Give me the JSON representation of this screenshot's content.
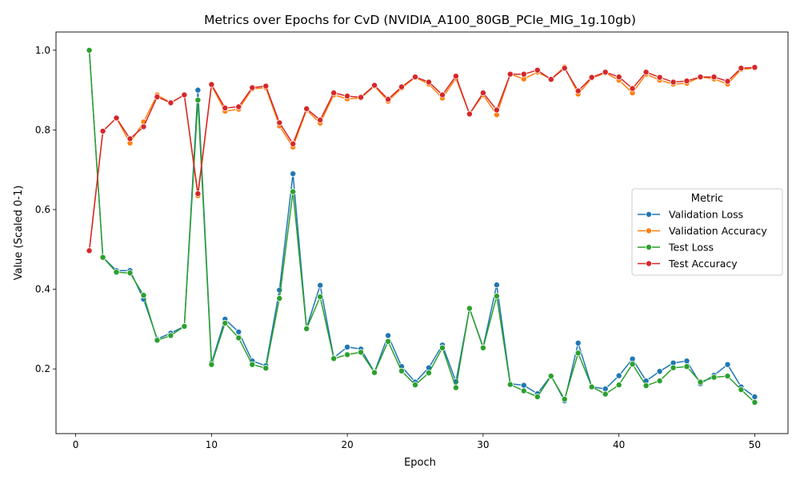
{
  "chart_data": {
    "type": "line",
    "title": "Metrics over Epochs for CvD (NVIDIA_A100_80GB_PCIe_MIG_1g.10gb)",
    "xlabel": "Epoch",
    "ylabel": "Value (Scaled 0-1)",
    "xlim": [
      -1.45,
      52.45
    ],
    "ylim": [
      0.0377,
      1.0458
    ],
    "xticks": [
      0,
      10,
      20,
      30,
      40,
      50
    ],
    "xtick_labels": [
      "0",
      "10",
      "20",
      "30",
      "40",
      "50"
    ],
    "yticks": [
      0.2,
      0.4,
      0.6,
      0.8,
      1.0
    ],
    "ytick_labels": [
      "0.2",
      "0.4",
      "0.6",
      "0.8",
      "1.0"
    ],
    "grid": false,
    "legend": {
      "title": "Metric",
      "placement": "center-right"
    },
    "x": [
      1,
      2,
      3,
      4,
      5,
      6,
      7,
      8,
      9,
      10,
      11,
      12,
      13,
      14,
      15,
      16,
      17,
      18,
      19,
      20,
      21,
      22,
      23,
      24,
      25,
      26,
      27,
      28,
      29,
      30,
      31,
      32,
      33,
      34,
      35,
      36,
      37,
      38,
      39,
      40,
      41,
      42,
      43,
      44,
      45,
      46,
      47,
      48,
      49,
      50
    ],
    "series": [
      {
        "name": "Validation Loss",
        "color": "#1f77b4",
        "values": [
          1.0,
          0.48,
          0.447,
          0.447,
          0.375,
          0.275,
          0.29,
          0.307,
          0.9,
          0.215,
          0.325,
          0.293,
          0.22,
          0.208,
          0.398,
          0.69,
          0.303,
          0.41,
          0.228,
          0.255,
          0.25,
          0.192,
          0.284,
          0.206,
          0.167,
          0.203,
          0.26,
          0.168,
          0.352,
          0.255,
          0.411,
          0.163,
          0.159,
          0.138,
          0.183,
          0.12,
          0.265,
          0.155,
          0.15,
          0.183,
          0.225,
          0.17,
          0.194,
          0.215,
          0.22,
          0.163,
          0.184,
          0.211,
          0.155,
          0.13
        ]
      },
      {
        "name": "Validation Accuracy",
        "color": "#ff7f0e",
        "values": [
          0.497,
          0.797,
          0.83,
          0.767,
          0.82,
          0.888,
          0.868,
          0.888,
          0.635,
          0.912,
          0.847,
          0.852,
          0.903,
          0.906,
          0.81,
          0.757,
          0.85,
          0.817,
          0.888,
          0.878,
          0.88,
          0.91,
          0.872,
          0.905,
          0.932,
          0.915,
          0.88,
          0.93,
          0.84,
          0.888,
          0.838,
          0.94,
          0.928,
          0.945,
          0.928,
          0.958,
          0.89,
          0.93,
          0.943,
          0.925,
          0.893,
          0.94,
          0.925,
          0.915,
          0.917,
          0.933,
          0.928,
          0.915,
          0.952,
          0.955
        ]
      },
      {
        "name": "Test Loss",
        "color": "#2ca02c",
        "values": [
          1.0,
          0.48,
          0.443,
          0.441,
          0.385,
          0.272,
          0.284,
          0.307,
          0.875,
          0.211,
          0.315,
          0.278,
          0.211,
          0.202,
          0.377,
          0.645,
          0.301,
          0.381,
          0.226,
          0.236,
          0.242,
          0.191,
          0.269,
          0.195,
          0.16,
          0.19,
          0.253,
          0.153,
          0.352,
          0.253,
          0.383,
          0.161,
          0.145,
          0.13,
          0.182,
          0.124,
          0.24,
          0.155,
          0.137,
          0.16,
          0.212,
          0.158,
          0.17,
          0.203,
          0.206,
          0.167,
          0.179,
          0.182,
          0.148,
          0.116
        ]
      },
      {
        "name": "Test Accuracy",
        "color": "#d62728",
        "values": [
          0.497,
          0.797,
          0.83,
          0.778,
          0.808,
          0.883,
          0.868,
          0.888,
          0.64,
          0.914,
          0.855,
          0.858,
          0.906,
          0.91,
          0.818,
          0.765,
          0.853,
          0.825,
          0.893,
          0.885,
          0.882,
          0.912,
          0.877,
          0.908,
          0.933,
          0.92,
          0.888,
          0.935,
          0.84,
          0.893,
          0.85,
          0.94,
          0.94,
          0.95,
          0.927,
          0.955,
          0.898,
          0.932,
          0.945,
          0.933,
          0.904,
          0.945,
          0.932,
          0.92,
          0.923,
          0.933,
          0.933,
          0.922,
          0.955,
          0.957
        ]
      }
    ]
  }
}
